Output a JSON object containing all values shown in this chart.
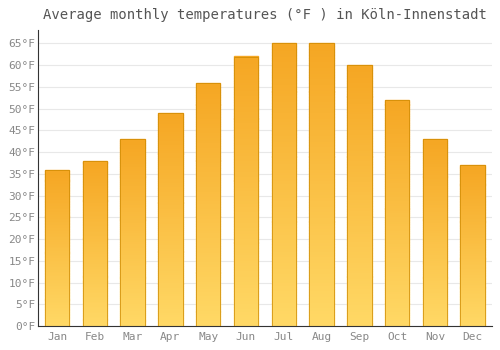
{
  "title": "Average monthly temperatures (°F ) in Köln-Innenstadt",
  "months": [
    "Jan",
    "Feb",
    "Mar",
    "Apr",
    "May",
    "Jun",
    "Jul",
    "Aug",
    "Sep",
    "Oct",
    "Nov",
    "Dec"
  ],
  "values": [
    36,
    38,
    43,
    49,
    56,
    62,
    65,
    65,
    60,
    52,
    43,
    37
  ],
  "bar_color_top": "#F5A623",
  "bar_color_bottom": "#FFD966",
  "background_color": "#FFFFFF",
  "plot_bg_color": "#FFFFFF",
  "grid_color": "#E8E8E8",
  "axis_color": "#333333",
  "ylim": [
    0,
    68
  ],
  "yticks": [
    0,
    5,
    10,
    15,
    20,
    25,
    30,
    35,
    40,
    45,
    50,
    55,
    60,
    65
  ],
  "ylabel_suffix": "°F",
  "title_fontsize": 10,
  "tick_fontsize": 8,
  "title_color": "#555555",
  "tick_color": "#888888",
  "figsize": [
    5.0,
    3.5
  ],
  "dpi": 100
}
